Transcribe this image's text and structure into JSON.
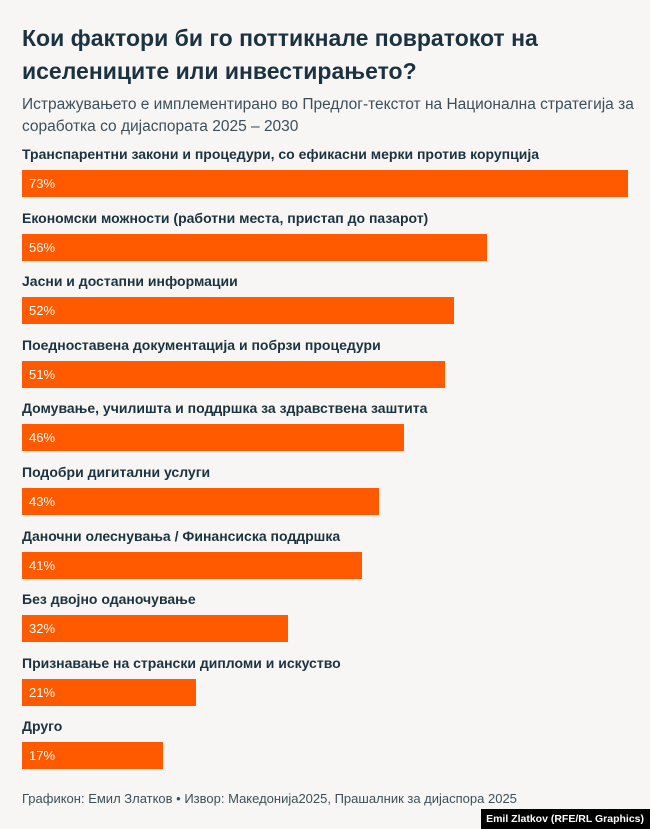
{
  "chart_data": {
    "type": "bar",
    "orientation": "horizontal",
    "title": "Кои фактори би го поттикнале повратокот на иселениците или инвестирањето?",
    "subtitle": "Истражувањето е имплементирано во Предлог-текстот на Национална стратегија за соработка со дијаспората 2025 – 2030",
    "categories": [
      "Транспарентни закони и процедури, со ефикасни мерки против корупција",
      "Економски можности (работни места, пристап до пазарот)",
      "Јасни и достапни информации",
      "Поедноставена документација и побрзи процедури",
      "Домување, училишта и поддршка за здравствена заштита",
      "Подобри дигитални услуги",
      "Даночни олеснувања / Финансиска поддршка",
      "Без двојно оданочување",
      "Признавање на странски дипломи и искуство",
      "Друго"
    ],
    "values": [
      73,
      56,
      52,
      51,
      46,
      43,
      41,
      32,
      21,
      17
    ],
    "value_labels": [
      "73%",
      "56%",
      "52%",
      "51%",
      "46%",
      "43%",
      "41%",
      "32%",
      "21%",
      "17%"
    ],
    "unit": "%",
    "xlim": [
      0,
      73
    ],
    "grid": false,
    "bar_color": "#ff5a00"
  },
  "footer": "Графикон: Емил Златков • Извор: Македонија2025, Прашалник за дијаспора 2025",
  "credit": "Emil Zlatkov (RFE/RL Graphics)"
}
